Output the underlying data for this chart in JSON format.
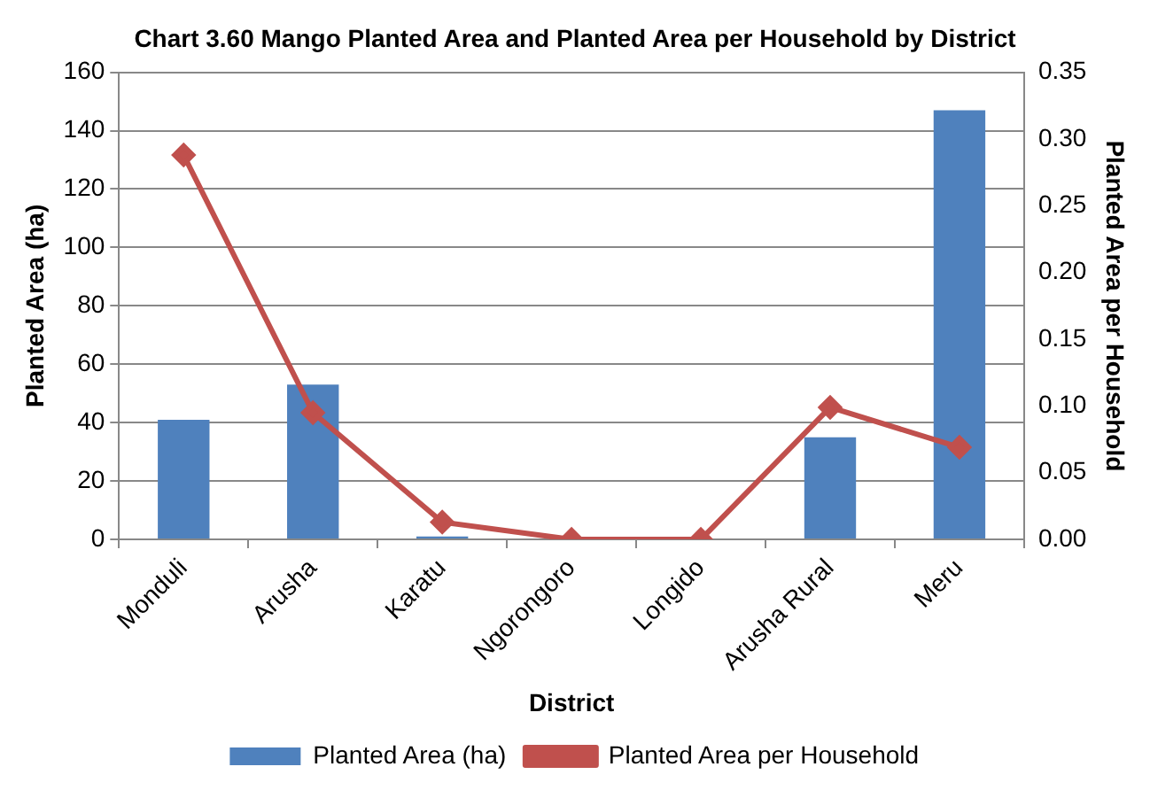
{
  "chart_data": {
    "type": "bar",
    "title": "Chart 3.60 Mango Planted Area and Planted Area per Household by District",
    "xlabel": "District",
    "ylabel": "Planted Area (ha)",
    "y2label": "Planted Area per Household",
    "categories": [
      "Monduli",
      "Arusha",
      "Karatu",
      "Ngorongoro",
      "Longido",
      "Arusha Rural",
      "Meru"
    ],
    "series": [
      {
        "name": "Planted Area (ha)",
        "color": "#4f81bd",
        "values": [
          41,
          53,
          1,
          0,
          0,
          35,
          147
        ]
      },
      {
        "name": "Planted Area per Household",
        "type": "line",
        "axis": "y2",
        "color": "#c0504d",
        "marker": "diamond",
        "values": [
          0.288,
          0.095,
          0.013,
          0,
          0,
          0.099,
          0.069
        ]
      }
    ],
    "ylim": [
      0,
      160
    ],
    "yticks": [
      0,
      20,
      40,
      60,
      80,
      100,
      120,
      140,
      160
    ],
    "y2lim": [
      0,
      0.35
    ],
    "y2ticks": [
      {
        "value": 0,
        "label": "0.00"
      },
      {
        "value": 0.05,
        "label": "0.05"
      },
      {
        "value": 0.1,
        "label": "0.10"
      },
      {
        "value": 0.15,
        "label": "0.15"
      },
      {
        "value": 0.2,
        "label": "0.20"
      },
      {
        "value": 0.25,
        "label": "0.25"
      },
      {
        "value": 0.3,
        "label": "0.30"
      },
      {
        "value": 0.35,
        "label": "0.35"
      }
    ],
    "grid": "y",
    "legend": "bottom"
  }
}
